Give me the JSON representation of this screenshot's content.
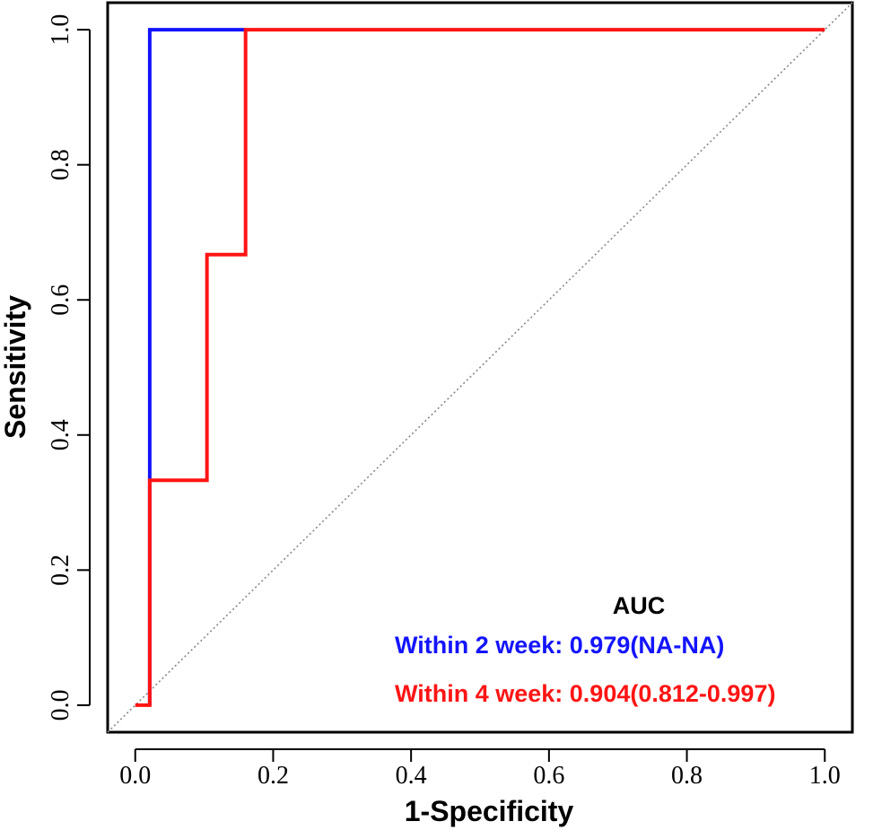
{
  "chart_data": {
    "type": "line",
    "title": "",
    "xlabel": "1-Specificity",
    "ylabel": "Sensitivity",
    "xlim": [
      -0.04,
      1.04
    ],
    "ylim": [
      -0.04,
      1.04
    ],
    "x_ticks": [
      0.0,
      0.2,
      0.4,
      0.6,
      0.8,
      1.0
    ],
    "y_ticks": [
      0.0,
      0.2,
      0.4,
      0.6,
      0.8,
      1.0
    ],
    "x_tick_labels": [
      "0.0",
      "0.2",
      "0.4",
      "0.6",
      "0.8",
      "1.0"
    ],
    "y_tick_labels": [
      "0.0",
      "0.2",
      "0.4",
      "0.6",
      "0.8",
      "1.0"
    ],
    "reference_line": {
      "x": [
        -0.04,
        1.04
      ],
      "y": [
        -0.04,
        1.04
      ],
      "style": "dotted",
      "color": "#888888"
    },
    "legend": {
      "title": "AUC",
      "placement": "bottom-right",
      "entries": [
        {
          "label": "Within 2 week: 0.979(NA-NA)",
          "color": "#1414ff"
        },
        {
          "label": "Within 4 week: 0.904(0.812-0.997)",
          "color": "#ff1414"
        }
      ]
    },
    "series": [
      {
        "name": "Within 2 week",
        "color": "#1414ff",
        "x": [
          0.021,
          0.021,
          0.021,
          0.16
        ],
        "y": [
          0.0,
          0.333,
          1.0,
          1.0
        ]
      },
      {
        "name": "Within 4 week",
        "color": "#ff1414",
        "x": [
          0.0,
          0.021,
          0.021,
          0.104,
          0.104,
          0.16,
          0.16,
          1.0
        ],
        "y": [
          0.0,
          0.0,
          0.333,
          0.333,
          0.667,
          0.667,
          1.0,
          1.0
        ]
      }
    ]
  }
}
